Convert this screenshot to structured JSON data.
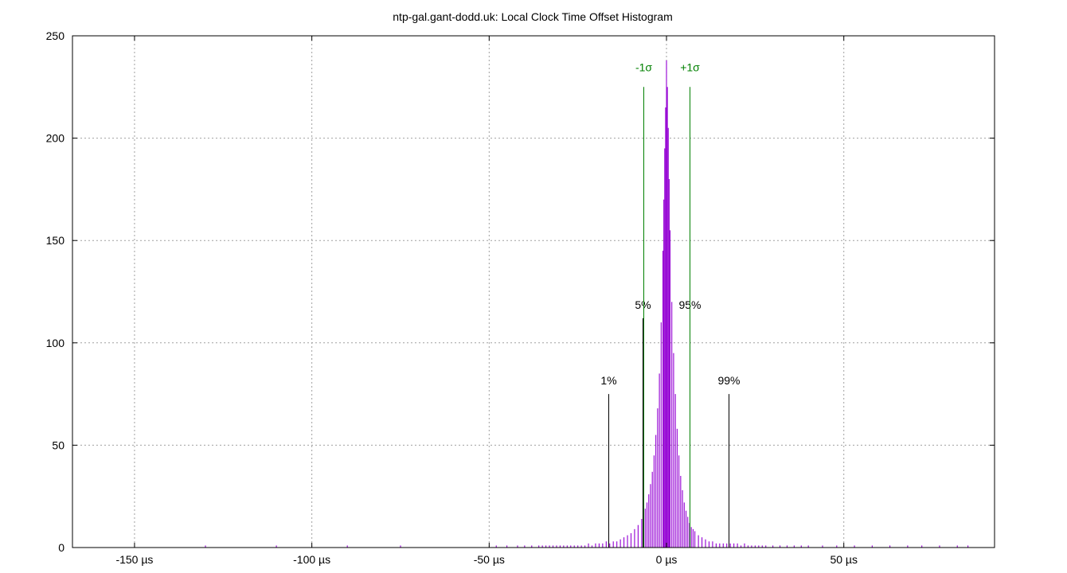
{
  "chart_data": {
    "type": "bar",
    "title": "ntp-gal.gant-dodd.uk: Local Clock Time Offset Histogram",
    "xlabel": "",
    "ylabel": "",
    "unit": "µs",
    "xlim": [
      -167.5,
      92.5
    ],
    "ylim": [
      0,
      250
    ],
    "grid": true,
    "x_ticks": [
      {
        "value": -150,
        "label": "-150 µs"
      },
      {
        "value": -100,
        "label": "-100 µs"
      },
      {
        "value": -50,
        "label": "-50 µs"
      },
      {
        "value": 0,
        "label": "0 µs"
      },
      {
        "value": 50,
        "label": "50 µs"
      }
    ],
    "y_ticks": [
      {
        "value": 0,
        "label": "0"
      },
      {
        "value": 50,
        "label": "50"
      },
      {
        "value": 100,
        "label": "100"
      },
      {
        "value": 150,
        "label": "150"
      },
      {
        "value": 200,
        "label": "200"
      },
      {
        "value": 250,
        "label": "250"
      }
    ],
    "bar_color": "#9400d3",
    "bin_width": 0.25,
    "bins": [
      [
        -48,
        1
      ],
      [
        -45,
        1
      ],
      [
        -42,
        1
      ],
      [
        -40,
        1
      ],
      [
        -38,
        1
      ],
      [
        -36,
        1
      ],
      [
        -35,
        1
      ],
      [
        -34,
        1
      ],
      [
        -33,
        1
      ],
      [
        -32,
        1
      ],
      [
        -31,
        1
      ],
      [
        -30,
        1
      ],
      [
        -29,
        1
      ],
      [
        -28,
        1
      ],
      [
        -27,
        1
      ],
      [
        -26,
        1
      ],
      [
        -25,
        1
      ],
      [
        -24,
        1
      ],
      [
        -23,
        1
      ],
      [
        -22,
        2
      ],
      [
        -21,
        1
      ],
      [
        -20,
        2
      ],
      [
        -19,
        2
      ],
      [
        -18,
        2
      ],
      [
        -17,
        3
      ],
      [
        -16,
        2
      ],
      [
        -15,
        3
      ],
      [
        -14,
        3
      ],
      [
        -13,
        4
      ],
      [
        -12,
        5
      ],
      [
        -11,
        6
      ],
      [
        -10,
        7
      ],
      [
        -9,
        9
      ],
      [
        -8,
        11
      ],
      [
        -7,
        14
      ],
      [
        -6.5,
        16
      ],
      [
        -6,
        19
      ],
      [
        -5.5,
        22
      ],
      [
        -5,
        26
      ],
      [
        -4.5,
        31
      ],
      [
        -4,
        37
      ],
      [
        -3.5,
        45
      ],
      [
        -3,
        55
      ],
      [
        -2.5,
        68
      ],
      [
        -2,
        85
      ],
      [
        -1.5,
        110
      ],
      [
        -1,
        145
      ],
      [
        -0.75,
        170
      ],
      [
        -0.5,
        195
      ],
      [
        -0.25,
        215
      ],
      [
        0,
        238
      ],
      [
        0.25,
        225
      ],
      [
        0.5,
        205
      ],
      [
        0.75,
        180
      ],
      [
        1,
        155
      ],
      [
        1.5,
        120
      ],
      [
        2,
        95
      ],
      [
        2.5,
        75
      ],
      [
        3,
        58
      ],
      [
        3.5,
        45
      ],
      [
        4,
        35
      ],
      [
        4.5,
        28
      ],
      [
        5,
        22
      ],
      [
        5.5,
        18
      ],
      [
        6,
        15
      ],
      [
        6.5,
        12
      ],
      [
        7,
        10
      ],
      [
        7.5,
        9
      ],
      [
        8,
        8
      ],
      [
        9,
        6
      ],
      [
        10,
        5
      ],
      [
        11,
        4
      ],
      [
        12,
        3
      ],
      [
        13,
        3
      ],
      [
        14,
        2
      ],
      [
        15,
        2
      ],
      [
        16,
        2
      ],
      [
        17,
        2
      ],
      [
        18,
        2
      ],
      [
        19,
        2
      ],
      [
        20,
        2
      ],
      [
        21,
        1
      ],
      [
        22,
        2
      ],
      [
        23,
        1
      ],
      [
        24,
        1
      ],
      [
        25,
        1
      ],
      [
        26,
        1
      ],
      [
        27,
        1
      ],
      [
        28,
        1
      ],
      [
        30,
        1
      ],
      [
        32,
        1
      ],
      [
        34,
        1
      ],
      [
        36,
        1
      ],
      [
        38,
        1
      ],
      [
        40,
        1
      ],
      [
        44,
        1
      ],
      [
        48,
        1
      ],
      [
        53,
        1
      ],
      [
        58,
        1
      ],
      [
        63,
        1
      ],
      [
        68,
        1
      ],
      [
        72,
        1
      ],
      [
        77,
        1
      ],
      [
        82,
        1
      ],
      [
        85,
        1
      ],
      [
        -75,
        1
      ],
      [
        -90,
        1
      ],
      [
        -110,
        1
      ],
      [
        -130,
        1
      ]
    ],
    "percentile_markers": [
      {
        "label": "1%",
        "x": -16.5,
        "y": 75
      },
      {
        "label": "5%",
        "x": -6.8,
        "y": 112
      },
      {
        "label": "95%",
        "x": 6.5,
        "y": 112
      },
      {
        "label": "99%",
        "x": 17.5,
        "y": 75
      }
    ],
    "sigma_markers": [
      {
        "label": "-1σ",
        "x": -6.5,
        "y": 225
      },
      {
        "label": "+1σ",
        "x": 6.5,
        "y": 225
      }
    ],
    "marker_color": "#000000",
    "sigma_color": "#008000"
  }
}
